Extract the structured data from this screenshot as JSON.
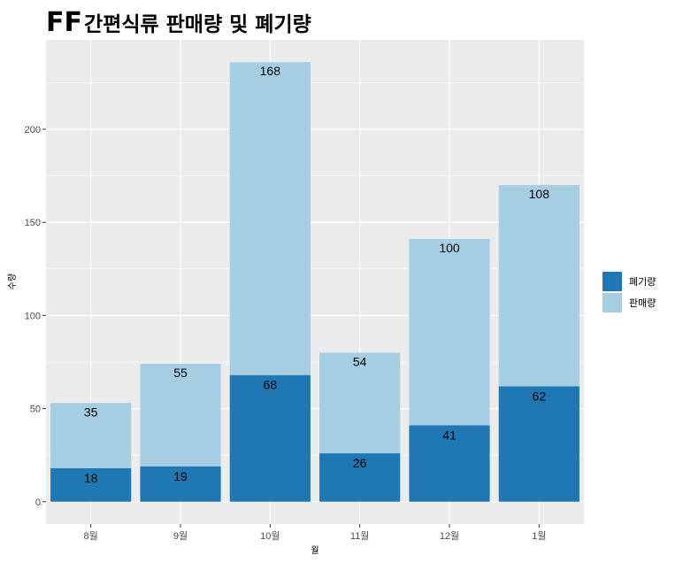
{
  "chart_data": {
    "type": "bar",
    "stacked": true,
    "title_prefix": "FF",
    "title_main": "간편식류 판매량 및 폐기량",
    "xlabel": "월",
    "ylabel": "수량",
    "categories": [
      "8월",
      "9월",
      "10월",
      "11월",
      "12월",
      "1월"
    ],
    "series": [
      {
        "name": "폐기량",
        "color": "#1f78b4",
        "values": [
          18,
          19,
          68,
          26,
          41,
          62
        ]
      },
      {
        "name": "판매량",
        "color": "#a6cee3",
        "values": [
          35,
          55,
          168,
          54,
          100,
          108
        ]
      }
    ],
    "ylim": [
      -12,
      248
    ],
    "yticks": [
      0,
      50,
      100,
      150,
      200
    ],
    "yticks_labels": [
      "0",
      "50",
      "100",
      "150",
      "200"
    ],
    "grid": true,
    "legend_position": "right",
    "panel_background": "#ebebeb"
  }
}
